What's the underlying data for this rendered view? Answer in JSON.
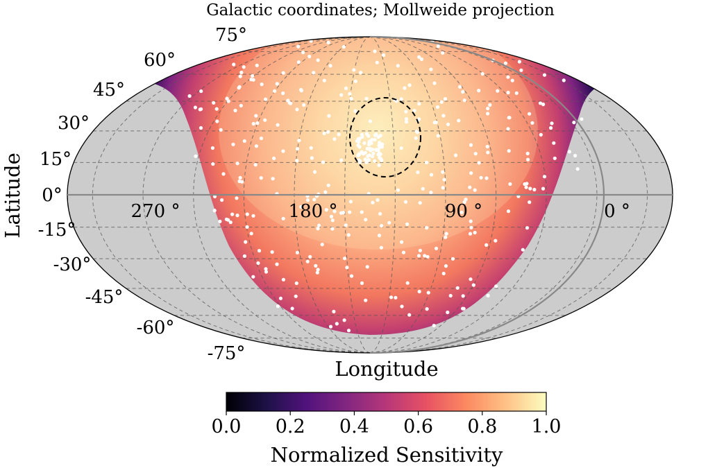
{
  "chart_data": {
    "type": "heatmap",
    "projection": "mollweide",
    "title": "Galactic coordinates; Mollweide projection",
    "xlabel": "Longitude",
    "ylabel": "Latitude",
    "lat_ticks": [
      "75°",
      "60°",
      "45°",
      "30°",
      "15°",
      "0°",
      "-15°",
      "-30°",
      "-45°",
      "-60°",
      "-75°"
    ],
    "lat_values": [
      75,
      60,
      45,
      30,
      15,
      0,
      -15,
      -30,
      -45,
      -60,
      -75
    ],
    "lon_ticks": [
      "270 °",
      "180 °",
      "90 °",
      "0 °"
    ],
    "lon_values": [
      270,
      180,
      90,
      0
    ],
    "grid": true,
    "gridline_lons": [
      330,
      300,
      270,
      240,
      210,
      180,
      150,
      120,
      90,
      60,
      30,
      0
    ],
    "coverage_note": "sky region without sensitivity shown in gray",
    "max_sensitivity_at": {
      "lon": 135,
      "lat": 20
    },
    "circled_region": {
      "lon": 135,
      "lat": 23,
      "radius_deg": 15
    },
    "colorbar": {
      "label": "Normalized Sensitivity",
      "min": 0.0,
      "max": 1.0,
      "ticks": [
        0.0,
        0.2,
        0.4,
        0.6,
        0.8,
        1.0
      ],
      "tick_labels": [
        "0.0",
        "0.2",
        "0.4",
        "0.6",
        "0.8",
        "1.0"
      ],
      "colormap": "magma",
      "stops": [
        "#000004",
        "#1d1147",
        "#51127c",
        "#822681",
        "#b73779",
        "#e75263",
        "#fc8961",
        "#fec287",
        "#fcfdbf"
      ]
    },
    "source_marker_color": "#ffffff",
    "source_cluster_center": {
      "lon": 135,
      "lat": 22
    }
  }
}
